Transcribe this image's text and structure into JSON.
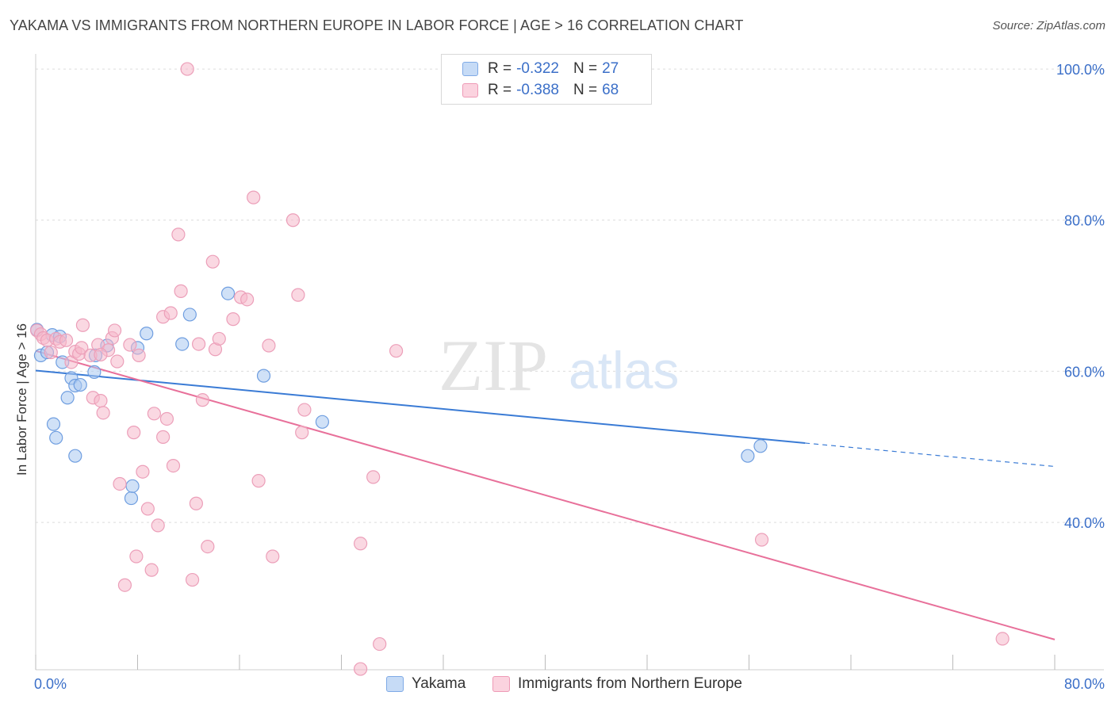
{
  "header": {
    "title": "YAKAMA VS IMMIGRANTS FROM NORTHERN EUROPE IN LABOR FORCE | AGE > 16 CORRELATION CHART",
    "source": "Source: ZipAtlas.com"
  },
  "watermark": {
    "zip": "ZIP",
    "atlas": "atlas"
  },
  "legend": {
    "rows": [
      {
        "r_label": "R =",
        "r_value": "-0.322",
        "n_label": "N =",
        "n_value": "27",
        "color": "#aac8f0"
      },
      {
        "r_label": "R =",
        "r_value": "-0.388",
        "n_label": "N =",
        "n_value": "68",
        "color": "#f5b8cb"
      }
    ]
  },
  "bottom_legend": {
    "yakama": "Yakama",
    "immigrants": "Immigrants from Northern Europe"
  },
  "colors": {
    "blue": "#3a7bd5",
    "pink": "#e8709a",
    "blue_fill": "#aac8f0",
    "pink_fill": "#f5b8cb",
    "tick_text": "#3b6fc8"
  },
  "chart_data": {
    "type": "scatter",
    "title": "YAKAMA VS IMMIGRANTS FROM NORTHERN EUROPE IN LABOR FORCE | AGE > 16 CORRELATION CHART",
    "xlabel": "",
    "ylabel": "In Labor Force | Age > 16",
    "xlim": [
      0,
      80
    ],
    "ylim": [
      20.5,
      102
    ],
    "x_tick_labels": [
      "0.0%",
      "80.0%"
    ],
    "y_ticks": [
      40,
      60,
      80,
      100
    ],
    "y_tick_labels": [
      "40.0%",
      "60.0%",
      "80.0%",
      "100.0%"
    ],
    "grid": true,
    "legend_position": "top-center",
    "series": [
      {
        "name": "Yakama",
        "color": "#3a7bd5",
        "points": [
          [
            0.1,
            65.5
          ],
          [
            0.4,
            62.1
          ],
          [
            0.9,
            62.5
          ],
          [
            1.3,
            64.8
          ],
          [
            1.4,
            53.0
          ],
          [
            1.6,
            51.2
          ],
          [
            1.9,
            64.6
          ],
          [
            2.1,
            61.2
          ],
          [
            2.5,
            56.5
          ],
          [
            2.8,
            59.1
          ],
          [
            3.1,
            58.1
          ],
          [
            3.1,
            48.8
          ],
          [
            3.5,
            58.2
          ],
          [
            4.6,
            59.9
          ],
          [
            4.7,
            62.1
          ],
          [
            5.6,
            63.4
          ],
          [
            7.5,
            43.2
          ],
          [
            7.6,
            44.8
          ],
          [
            8.0,
            63.1
          ],
          [
            8.7,
            65.0
          ],
          [
            11.5,
            63.6
          ],
          [
            12.1,
            67.5
          ],
          [
            15.1,
            70.3
          ],
          [
            17.9,
            59.4
          ],
          [
            22.5,
            53.3
          ],
          [
            55.9,
            48.8
          ],
          [
            56.9,
            50.1
          ]
        ],
        "trend": {
          "x_start": 0,
          "y_start": 60.1,
          "x_end": 60.4,
          "y_end": 50.5,
          "dashed_to_x": 80,
          "dashed_to_y": 47.4
        }
      },
      {
        "name": "Immigrants from Northern Europe",
        "color": "#e8709a",
        "points": [
          [
            0.1,
            65.4
          ],
          [
            0.4,
            64.9
          ],
          [
            0.6,
            64.4
          ],
          [
            0.9,
            64.1
          ],
          [
            1.2,
            62.5
          ],
          [
            1.6,
            64.3
          ],
          [
            1.9,
            63.9
          ],
          [
            2.4,
            64.1
          ],
          [
            2.8,
            61.2
          ],
          [
            3.1,
            62.6
          ],
          [
            3.4,
            62.3
          ],
          [
            3.6,
            63.1
          ],
          [
            3.7,
            66.1
          ],
          [
            4.3,
            62.1
          ],
          [
            4.5,
            56.5
          ],
          [
            4.9,
            63.5
          ],
          [
            5.1,
            56.1
          ],
          [
            5.3,
            54.5
          ],
          [
            5.7,
            62.8
          ],
          [
            6.0,
            64.4
          ],
          [
            6.2,
            65.4
          ],
          [
            6.4,
            61.3
          ],
          [
            6.6,
            45.1
          ],
          [
            7.0,
            31.7
          ],
          [
            7.4,
            63.5
          ],
          [
            7.7,
            51.9
          ],
          [
            7.9,
            35.5
          ],
          [
            8.1,
            62.1
          ],
          [
            8.4,
            46.7
          ],
          [
            8.8,
            41.8
          ],
          [
            9.1,
            33.7
          ],
          [
            9.3,
            54.4
          ],
          [
            9.6,
            39.6
          ],
          [
            10.0,
            51.3
          ],
          [
            10.0,
            67.2
          ],
          [
            10.3,
            53.7
          ],
          [
            10.6,
            67.7
          ],
          [
            10.8,
            47.5
          ],
          [
            11.2,
            78.1
          ],
          [
            11.4,
            70.6
          ],
          [
            11.9,
            100.0
          ],
          [
            12.3,
            32.4
          ],
          [
            12.6,
            42.5
          ],
          [
            12.8,
            63.6
          ],
          [
            13.1,
            56.2
          ],
          [
            13.5,
            36.8
          ],
          [
            13.9,
            74.5
          ],
          [
            14.1,
            62.9
          ],
          [
            14.4,
            64.3
          ],
          [
            15.5,
            66.9
          ],
          [
            16.1,
            69.8
          ],
          [
            16.6,
            69.5
          ],
          [
            17.1,
            83.0
          ],
          [
            17.5,
            45.5
          ],
          [
            18.3,
            63.4
          ],
          [
            18.6,
            35.5
          ],
          [
            20.2,
            80.0
          ],
          [
            20.6,
            70.1
          ],
          [
            20.9,
            51.9
          ],
          [
            21.1,
            54.9
          ],
          [
            25.5,
            37.2
          ],
          [
            26.5,
            46.0
          ],
          [
            27.0,
            23.9
          ],
          [
            28.3,
            62.7
          ],
          [
            57.0,
            37.7
          ],
          [
            75.9,
            24.6
          ],
          [
            25.5,
            20.6
          ],
          [
            5.1,
            62.2
          ]
        ],
        "trend": {
          "x_start": 0,
          "y_start": 62.7,
          "x_end": 80,
          "y_end": 24.5
        }
      }
    ]
  }
}
